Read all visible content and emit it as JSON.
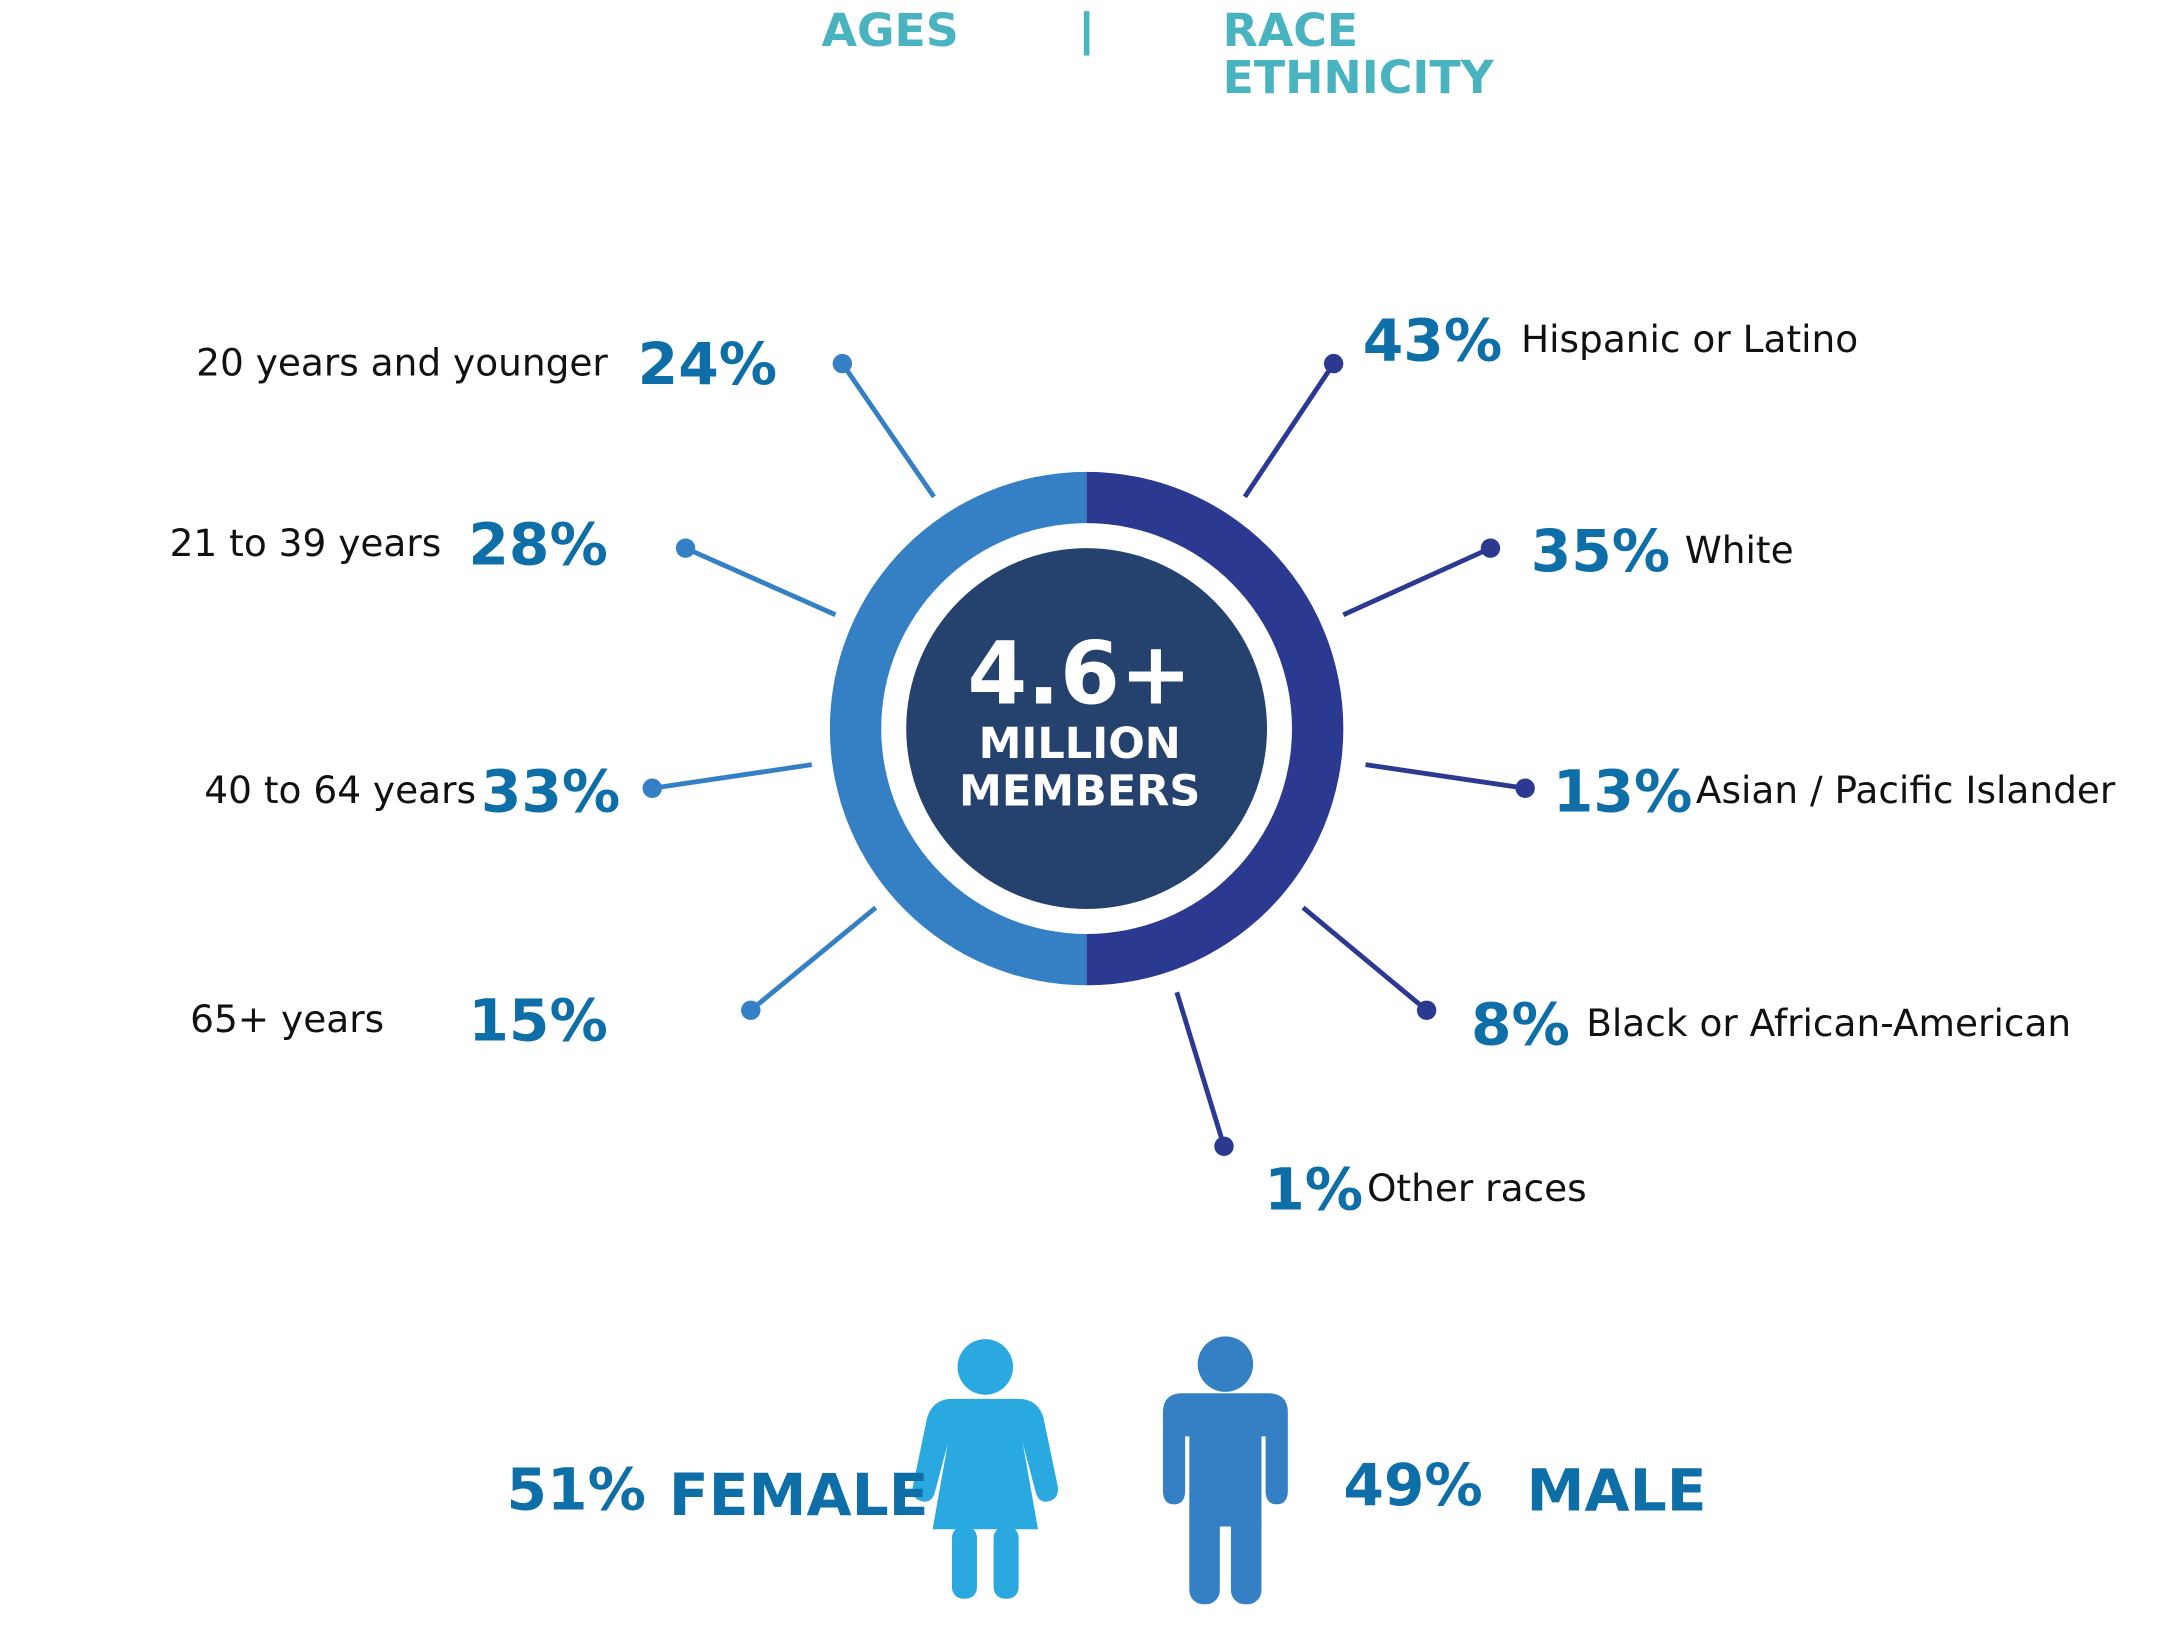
{
  "header": {
    "ages": "AGES",
    "race": [
      "RACE",
      "ETHNICITY"
    ]
  },
  "center": {
    "value": "4.6+",
    "lines": [
      "MILLION",
      "MEMBERS"
    ]
  },
  "ages": [
    {
      "label": "20 years and younger",
      "percent": "24%"
    },
    {
      "label": "21 to 39 years",
      "percent": "28%"
    },
    {
      "label": "40 to 64 years",
      "percent": "33%"
    },
    {
      "label": "65+ years",
      "percent": "15%"
    }
  ],
  "race": [
    {
      "label": "Hispanic or Latino",
      "percent": "43%"
    },
    {
      "label": "White",
      "percent": "35%"
    },
    {
      "label": "Asian / Pacific Islander",
      "percent": "13%"
    },
    {
      "label": "Black or African-American",
      "percent": "8%"
    },
    {
      "label": "Other races",
      "percent": "1%"
    }
  ],
  "gender": {
    "female": {
      "percent": "51%",
      "label": "FEMALE"
    },
    "male": {
      "percent": "49%",
      "label": "MALE"
    }
  }
}
